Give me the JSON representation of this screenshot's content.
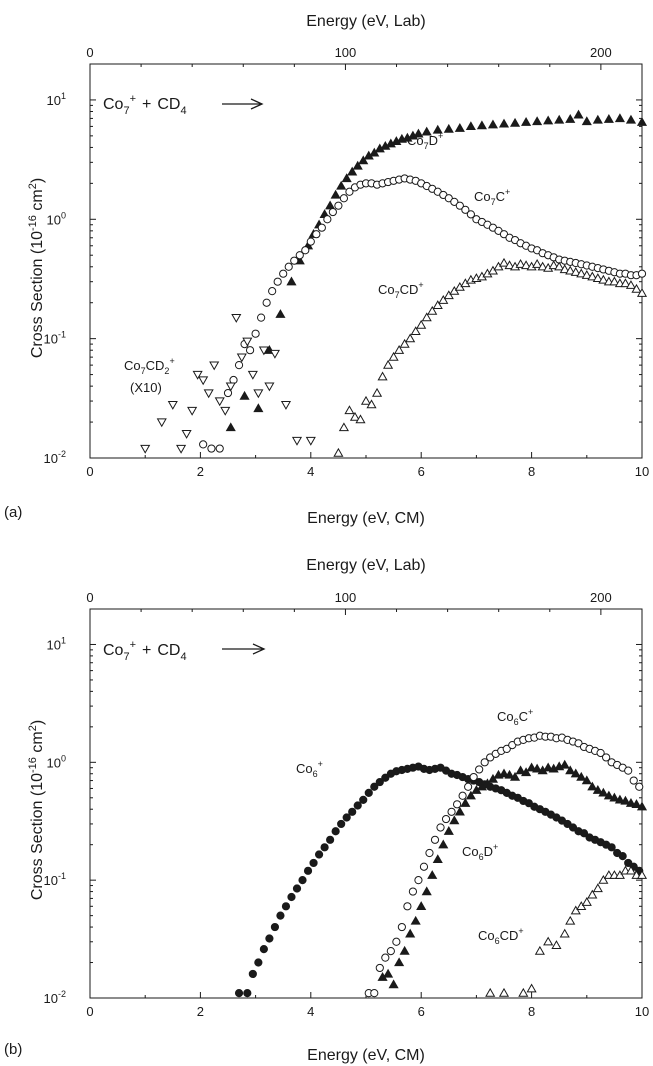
{
  "chart_data": [
    {
      "panel": "(a)",
      "type": "scatter",
      "xlabel": "Energy (eV, CM)",
      "x2label": "Energy (eV, Lab)",
      "ylabel": "Cross Section (10^-16 cm^2)",
      "xlim": [
        0,
        10
      ],
      "ylim": [
        0.01,
        20
      ],
      "yscale": "log",
      "xticks": [
        0,
        2,
        4,
        6,
        8,
        10
      ],
      "x2ticks": [
        0,
        100,
        200
      ],
      "x2_per_x": 21.61,
      "yticks": [
        0.01,
        0.1,
        1,
        10
      ],
      "reaction": {
        "reactant": "Co",
        "n": "7",
        "charge": "+",
        "plus": "+",
        "reagent": "CD",
        "reagent_sub": "4"
      },
      "annotations": [
        {
          "id": "lab-co7d",
          "base": "Co",
          "sub": "7",
          "rest": "D",
          "sup": "+"
        },
        {
          "id": "lab-co7c",
          "base": "Co",
          "sub": "7",
          "rest": "C",
          "sup": "+"
        },
        {
          "id": "lab-co7cd",
          "base": "Co",
          "sub": "7",
          "rest": "CD",
          "sup": "+"
        },
        {
          "id": "lab-co7cd2",
          "base": "Co",
          "sub": "7",
          "rest": "CD",
          "sub2": "2",
          "sup": "+"
        },
        {
          "id": "lab-x10",
          "text": "(X10)"
        }
      ],
      "series": [
        {
          "name": "Co7D+",
          "marker": "triangle-up-filled",
          "x": [
            2.55,
            2.8,
            3.05,
            3.25,
            3.45,
            3.65,
            3.8,
            3.95,
            4.05,
            4.15,
            4.25,
            4.35,
            4.45,
            4.55,
            4.65,
            4.75,
            4.85,
            4.95,
            5.05,
            5.15,
            5.25,
            5.35,
            5.45,
            5.55,
            5.65,
            5.75,
            5.85,
            5.95,
            6.1,
            6.3,
            6.5,
            6.7,
            6.9,
            7.1,
            7.3,
            7.5,
            7.7,
            7.9,
            8.1,
            8.3,
            8.5,
            8.7,
            8.85,
            9.0,
            9.2,
            9.4,
            9.6,
            9.8,
            10.0
          ],
          "y": [
            0.018,
            0.033,
            0.026,
            0.08,
            0.16,
            0.3,
            0.45,
            0.6,
            0.75,
            0.9,
            1.1,
            1.3,
            1.6,
            1.9,
            2.2,
            2.5,
            2.8,
            3.1,
            3.4,
            3.6,
            3.9,
            4.1,
            4.3,
            4.5,
            4.7,
            4.8,
            5.0,
            5.2,
            5.4,
            5.6,
            5.7,
            5.8,
            6.0,
            6.1,
            6.2,
            6.3,
            6.4,
            6.5,
            6.6,
            6.7,
            6.8,
            6.9,
            7.5,
            6.6,
            6.8,
            6.9,
            7.0,
            6.8,
            6.5
          ]
        },
        {
          "name": "Co7C+",
          "marker": "circle-open",
          "x": [
            2.05,
            2.2,
            2.35,
            2.5,
            2.6,
            2.7,
            2.8,
            2.9,
            3.0,
            3.1,
            3.2,
            3.3,
            3.4,
            3.5,
            3.6,
            3.7,
            3.8,
            3.9,
            4.0,
            4.1,
            4.2,
            4.3,
            4.4,
            4.5,
            4.6,
            4.7,
            4.8,
            4.9,
            5.0,
            5.1,
            5.2,
            5.3,
            5.4,
            5.5,
            5.6,
            5.7,
            5.8,
            5.9,
            6.0,
            6.1,
            6.2,
            6.3,
            6.4,
            6.5,
            6.6,
            6.7,
            6.8,
            6.9,
            7.0,
            7.1,
            7.2,
            7.3,
            7.4,
            7.5,
            7.6,
            7.7,
            7.8,
            7.9,
            8.0,
            8.1,
            8.2,
            8.3,
            8.4,
            8.5,
            8.6,
            8.7,
            8.8,
            8.9,
            9.0,
            9.1,
            9.2,
            9.3,
            9.4,
            9.5,
            9.6,
            9.7,
            9.8,
            9.9,
            10.0
          ],
          "y": [
            0.013,
            0.012,
            0.012,
            0.035,
            0.045,
            0.06,
            0.09,
            0.08,
            0.11,
            0.15,
            0.2,
            0.25,
            0.3,
            0.35,
            0.4,
            0.45,
            0.5,
            0.55,
            0.65,
            0.75,
            0.85,
            1.0,
            1.15,
            1.3,
            1.5,
            1.7,
            1.85,
            1.95,
            2.0,
            2.0,
            1.95,
            2.0,
            2.05,
            2.1,
            2.15,
            2.2,
            2.15,
            2.1,
            2.0,
            1.9,
            1.8,
            1.7,
            1.6,
            1.5,
            1.4,
            1.3,
            1.2,
            1.1,
            1.0,
            0.95,
            0.9,
            0.85,
            0.8,
            0.75,
            0.7,
            0.67,
            0.63,
            0.6,
            0.57,
            0.55,
            0.52,
            0.5,
            0.48,
            0.46,
            0.45,
            0.44,
            0.43,
            0.42,
            0.41,
            0.4,
            0.39,
            0.38,
            0.37,
            0.36,
            0.35,
            0.35,
            0.34,
            0.34,
            0.35
          ]
        },
        {
          "name": "Co7CD+",
          "marker": "triangle-up-open",
          "x": [
            4.5,
            4.6,
            4.7,
            4.8,
            4.9,
            5.0,
            5.1,
            5.2,
            5.3,
            5.4,
            5.5,
            5.6,
            5.7,
            5.8,
            5.9,
            6.0,
            6.1,
            6.2,
            6.3,
            6.4,
            6.5,
            6.6,
            6.7,
            6.8,
            6.9,
            7.0,
            7.1,
            7.2,
            7.3,
            7.4,
            7.5,
            7.6,
            7.7,
            7.8,
            7.9,
            8.0,
            8.1,
            8.2,
            8.3,
            8.4,
            8.5,
            8.6,
            8.7,
            8.8,
            8.9,
            9.0,
            9.1,
            9.2,
            9.3,
            9.4,
            9.5,
            9.6,
            9.7,
            9.8,
            9.9,
            10.0
          ],
          "y": [
            0.011,
            0.018,
            0.025,
            0.022,
            0.021,
            0.03,
            0.028,
            0.035,
            0.048,
            0.06,
            0.07,
            0.08,
            0.09,
            0.1,
            0.115,
            0.13,
            0.15,
            0.17,
            0.19,
            0.21,
            0.23,
            0.25,
            0.27,
            0.29,
            0.31,
            0.32,
            0.33,
            0.35,
            0.37,
            0.4,
            0.43,
            0.41,
            0.4,
            0.42,
            0.41,
            0.4,
            0.42,
            0.4,
            0.39,
            0.41,
            0.4,
            0.38,
            0.37,
            0.36,
            0.35,
            0.34,
            0.33,
            0.32,
            0.31,
            0.3,
            0.3,
            0.29,
            0.29,
            0.28,
            0.26,
            0.24
          ]
        },
        {
          "name": "Co7CD2+ (X10)",
          "marker": "triangle-down-open",
          "x": [
            1.0,
            1.3,
            1.5,
            1.65,
            1.75,
            1.85,
            1.95,
            2.05,
            2.15,
            2.25,
            2.35,
            2.45,
            2.55,
            2.65,
            2.75,
            2.85,
            2.95,
            3.05,
            3.15,
            3.25,
            3.35,
            3.55,
            3.75,
            4.0
          ],
          "y": [
            0.012,
            0.02,
            0.028,
            0.012,
            0.016,
            0.025,
            0.05,
            0.045,
            0.035,
            0.06,
            0.03,
            0.025,
            0.04,
            0.15,
            0.07,
            0.095,
            0.05,
            0.035,
            0.08,
            0.04,
            0.075,
            0.028,
            0.014,
            0.014
          ]
        }
      ]
    },
    {
      "panel": "(b)",
      "type": "scatter",
      "xlabel": "Energy (eV, CM)",
      "x2label": "Energy (eV, Lab)",
      "ylabel": "Cross Section (10^-16 cm^2)",
      "xlim": [
        0,
        10
      ],
      "ylim": [
        0.01,
        20
      ],
      "yscale": "log",
      "xticks": [
        0,
        2,
        4,
        6,
        8,
        10
      ],
      "x2ticks": [
        0,
        100,
        200
      ],
      "x2_per_x": 21.61,
      "yticks": [
        0.01,
        0.1,
        1,
        10
      ],
      "reaction": {
        "reactant": "Co",
        "n": "7",
        "charge": "+",
        "plus": "+",
        "reagent": "CD",
        "reagent_sub": "4"
      },
      "annotations": [
        {
          "id": "lab-co6",
          "base": "Co",
          "sub": "6",
          "rest": "",
          "sup": "+"
        },
        {
          "id": "lab-co6c",
          "base": "Co",
          "sub": "6",
          "rest": "C",
          "sup": "+"
        },
        {
          "id": "lab-co6d",
          "base": "Co",
          "sub": "6",
          "rest": "D",
          "sup": "+"
        },
        {
          "id": "lab-co6cd",
          "base": "Co",
          "sub": "6",
          "rest": "CD",
          "sup": "+"
        }
      ],
      "series": [
        {
          "name": "Co6+",
          "marker": "circle-filled",
          "x": [
            2.7,
            2.85,
            2.95,
            3.05,
            3.15,
            3.25,
            3.35,
            3.45,
            3.55,
            3.65,
            3.75,
            3.85,
            3.95,
            4.05,
            4.15,
            4.25,
            4.35,
            4.45,
            4.55,
            4.65,
            4.75,
            4.85,
            4.95,
            5.05,
            5.15,
            5.25,
            5.35,
            5.45,
            5.55,
            5.65,
            5.75,
            5.85,
            5.95,
            6.05,
            6.15,
            6.25,
            6.35,
            6.45,
            6.55,
            6.65,
            6.75,
            6.85,
            6.95,
            7.05,
            7.15,
            7.25,
            7.35,
            7.45,
            7.55,
            7.65,
            7.75,
            7.85,
            7.95,
            8.05,
            8.15,
            8.25,
            8.35,
            8.45,
            8.55,
            8.65,
            8.75,
            8.85,
            8.95,
            9.05,
            9.15,
            9.25,
            9.35,
            9.45,
            9.55,
            9.65,
            9.75,
            9.85,
            9.95
          ],
          "y": [
            0.011,
            0.011,
            0.016,
            0.02,
            0.026,
            0.032,
            0.04,
            0.05,
            0.06,
            0.072,
            0.085,
            0.1,
            0.12,
            0.14,
            0.165,
            0.19,
            0.22,
            0.26,
            0.3,
            0.34,
            0.38,
            0.43,
            0.48,
            0.55,
            0.62,
            0.68,
            0.74,
            0.8,
            0.84,
            0.86,
            0.88,
            0.9,
            0.92,
            0.88,
            0.86,
            0.88,
            0.9,
            0.85,
            0.8,
            0.78,
            0.75,
            0.72,
            0.7,
            0.68,
            0.65,
            0.62,
            0.6,
            0.58,
            0.55,
            0.52,
            0.5,
            0.47,
            0.45,
            0.42,
            0.4,
            0.38,
            0.36,
            0.34,
            0.32,
            0.3,
            0.28,
            0.26,
            0.25,
            0.23,
            0.22,
            0.21,
            0.2,
            0.19,
            0.17,
            0.16,
            0.14,
            0.13,
            0.12
          ]
        },
        {
          "name": "Co6C+",
          "marker": "circle-open",
          "x": [
            5.05,
            5.15,
            5.25,
            5.35,
            5.45,
            5.55,
            5.65,
            5.75,
            5.85,
            5.95,
            6.05,
            6.15,
            6.25,
            6.35,
            6.45,
            6.55,
            6.65,
            6.75,
            6.85,
            6.95,
            7.05,
            7.15,
            7.25,
            7.35,
            7.45,
            7.55,
            7.65,
            7.75,
            7.85,
            7.95,
            8.05,
            8.15,
            8.25,
            8.35,
            8.45,
            8.55,
            8.65,
            8.75,
            8.85,
            8.95,
            9.05,
            9.15,
            9.25,
            9.35,
            9.45,
            9.55,
            9.65,
            9.75,
            9.85,
            9.95
          ],
          "y": [
            0.011,
            0.011,
            0.018,
            0.022,
            0.025,
            0.03,
            0.04,
            0.06,
            0.08,
            0.1,
            0.13,
            0.17,
            0.22,
            0.28,
            0.33,
            0.38,
            0.44,
            0.52,
            0.62,
            0.75,
            0.87,
            1.0,
            1.1,
            1.18,
            1.25,
            1.3,
            1.4,
            1.5,
            1.55,
            1.6,
            1.62,
            1.68,
            1.65,
            1.65,
            1.6,
            1.62,
            1.55,
            1.5,
            1.45,
            1.35,
            1.3,
            1.25,
            1.2,
            1.1,
            1.0,
            0.95,
            0.9,
            0.85,
            0.7,
            0.62
          ]
        },
        {
          "name": "Co6D+",
          "marker": "triangle-up-filled",
          "x": [
            5.3,
            5.4,
            5.5,
            5.6,
            5.7,
            5.8,
            5.9,
            6.0,
            6.1,
            6.2,
            6.3,
            6.4,
            6.5,
            6.6,
            6.7,
            6.8,
            6.9,
            7.0,
            7.1,
            7.2,
            7.3,
            7.4,
            7.5,
            7.6,
            7.7,
            7.8,
            7.9,
            8.0,
            8.1,
            8.2,
            8.3,
            8.4,
            8.5,
            8.6,
            8.7,
            8.8,
            8.9,
            9.0,
            9.1,
            9.2,
            9.3,
            9.4,
            9.5,
            9.6,
            9.7,
            9.8,
            9.9,
            10.0
          ],
          "y": [
            0.015,
            0.016,
            0.013,
            0.02,
            0.025,
            0.035,
            0.045,
            0.06,
            0.08,
            0.11,
            0.15,
            0.2,
            0.26,
            0.32,
            0.38,
            0.45,
            0.52,
            0.58,
            0.62,
            0.66,
            0.72,
            0.78,
            0.8,
            0.78,
            0.75,
            0.85,
            0.82,
            0.9,
            0.88,
            0.85,
            0.9,
            0.88,
            0.92,
            0.95,
            0.85,
            0.8,
            0.75,
            0.7,
            0.62,
            0.58,
            0.55,
            0.52,
            0.5,
            0.48,
            0.47,
            0.45,
            0.44,
            0.42
          ]
        },
        {
          "name": "Co6CD+",
          "marker": "triangle-up-open",
          "x": [
            7.25,
            7.5,
            7.85,
            8.0,
            8.15,
            8.3,
            8.45,
            8.6,
            8.7,
            8.8,
            8.9,
            9.0,
            9.1,
            9.2,
            9.3,
            9.4,
            9.5,
            9.6,
            9.7,
            9.8,
            9.9,
            10.0
          ],
          "y": [
            0.011,
            0.011,
            0.011,
            0.012,
            0.025,
            0.03,
            0.028,
            0.035,
            0.045,
            0.055,
            0.06,
            0.065,
            0.075,
            0.085,
            0.1,
            0.11,
            0.11,
            0.11,
            0.12,
            0.12,
            0.11,
            0.11
          ]
        }
      ]
    }
  ]
}
